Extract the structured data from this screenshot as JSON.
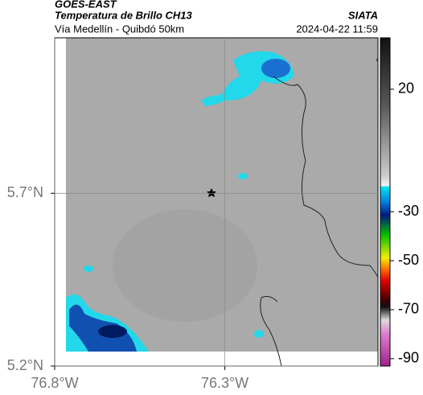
{
  "header": {
    "source": "GOES-EAST",
    "title": "Temperatura de Brillo CH13",
    "org": "SIATA",
    "subtitle": "Vía Medellín - Quibdó 50km",
    "datetime": "2024-04-22 11:59"
  },
  "map": {
    "xlim": [
      -76.8,
      -75.85
    ],
    "ylim": [
      5.2,
      6.15
    ],
    "xticks": [
      {
        "value": -76.8,
        "label": "76.8°W"
      },
      {
        "value": -76.3,
        "label": "76.3°W"
      }
    ],
    "yticks": [
      {
        "value": 5.7,
        "label": "5.7°N"
      },
      {
        "value": 5.2,
        "label": "5.2°N"
      }
    ],
    "grid": true
  },
  "colorbar": {
    "lim": [
      -93,
      41
    ],
    "ticks": [
      20,
      -30,
      -50,
      -70,
      -90
    ]
  }
}
